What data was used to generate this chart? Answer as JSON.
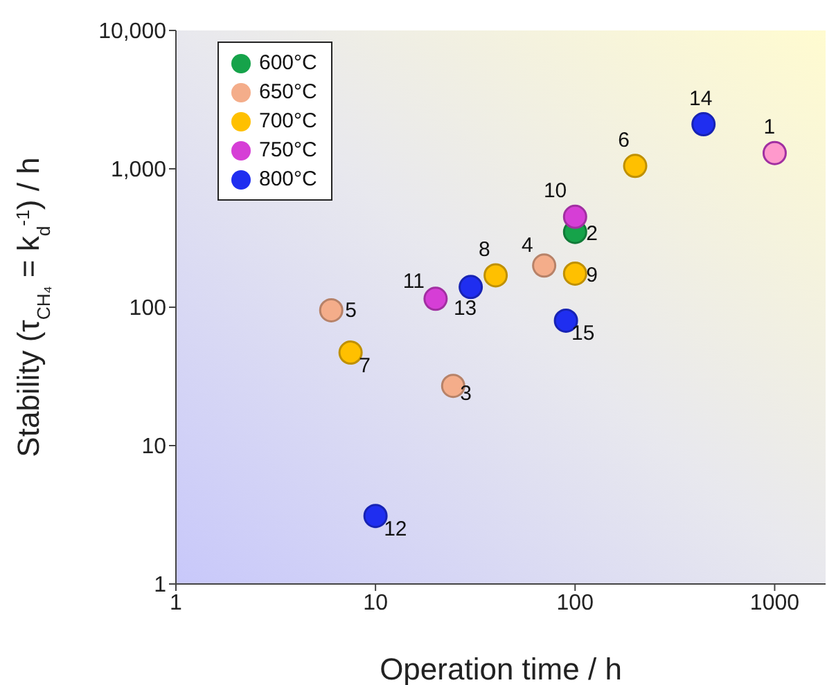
{
  "chart_data": {
    "type": "scatter",
    "xlabel": "Operation  time / h",
    "ylabel": "Stability (τ$_{CH₄}$ = k$_{d}$$^{-1}$) / h",
    "log": "xy",
    "legend": "top left",
    "marker": "circle",
    "xlim": [
      1,
      1800
    ],
    "xticks": [
      1,
      10,
      100,
      1000
    ],
    "ylim": [
      1,
      10000
    ],
    "yticks": [
      1,
      10,
      100,
      {
        "value": 1000,
        "label": "1,000"
      },
      {
        "value": 10000,
        "label": "10,000"
      }
    ],
    "series": [
      {
        "name": "600°C",
        "color": "#16a34a",
        "x": [
          100
        ],
        "values": [
          350
        ]
      },
      {
        "name": "650°C",
        "color": "#f4ad8a",
        "x": [
          24.5,
          70,
          6
        ],
        "values": [
          27,
          200,
          95
        ]
      },
      {
        "name": "700°C",
        "color": "#ffc000",
        "x": [
          200,
          7.5,
          40,
          100
        ],
        "values": [
          1050,
          47,
          170,
          175
        ]
      },
      {
        "name": "750°C",
        "color": "#d63ed6",
        "colors": [
          "#ff99cc",
          "#d63ed6",
          "#d63ed6"
        ],
        "x": [
          1000,
          100,
          20
        ],
        "values": [
          1300,
          450,
          115
        ]
      },
      {
        "name": "800°C",
        "color": "#1f2ef0",
        "x": [
          10,
          30,
          440,
          90
        ],
        "values": [
          3.1,
          140,
          2100,
          80
        ]
      }
    ],
    "annotations": [
      {
        "text": "1",
        "x": 1000,
        "y": 1300
      },
      {
        "text": "2",
        "x": 100,
        "y": 350
      },
      {
        "text": "3",
        "x": 24.5,
        "y": 27
      },
      {
        "text": "4",
        "x": 70,
        "y": 200
      },
      {
        "text": "5",
        "x": 6,
        "y": 95
      },
      {
        "text": "6",
        "x": 200,
        "y": 1050
      },
      {
        "text": "7",
        "x": 7.5,
        "y": 47
      },
      {
        "text": "8",
        "x": 40,
        "y": 170
      },
      {
        "text": "9",
        "x": 100,
        "y": 175
      },
      {
        "text": "10",
        "x": 100,
        "y": 450
      },
      {
        "text": "11",
        "x": 20,
        "y": 115
      },
      {
        "text": "12",
        "x": 10,
        "y": 3.1
      },
      {
        "text": "13",
        "x": 30,
        "y": 140
      },
      {
        "text": "14",
        "x": 440,
        "y": 2100
      },
      {
        "text": "15",
        "x": 90,
        "y": 80
      }
    ]
  }
}
